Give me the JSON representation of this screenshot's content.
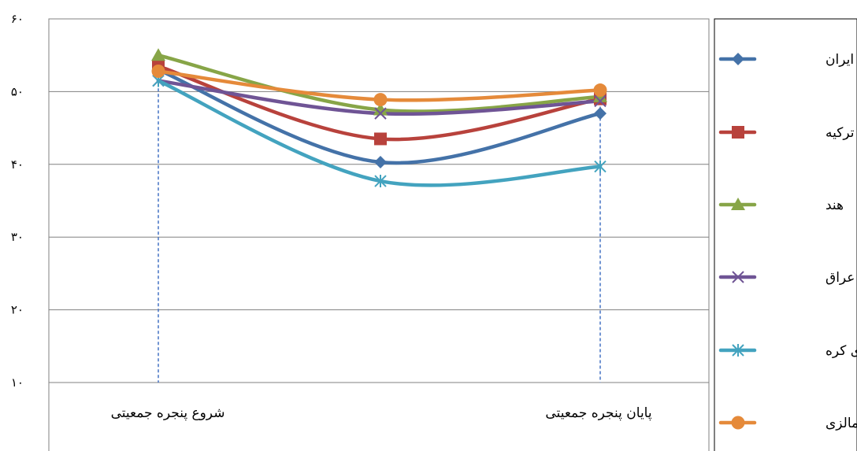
{
  "chart_data": {
    "type": "line",
    "categories": [
      "شروع پنجره جمعیتی",
      "",
      "پایان پنجره جمعیتی"
    ],
    "y_tick_labels": [
      "۱۰",
      "۲۰",
      "۳۰",
      "۴۰",
      "۵۰",
      "۶۰"
    ],
    "ylim": [
      10,
      60
    ],
    "y_ticks": [
      10,
      20,
      30,
      40,
      50,
      60
    ],
    "grid": true,
    "legend_position": "right",
    "series": [
      {
        "name": "ایران",
        "values": [
          53,
          40.3,
          47
        ],
        "color": "#4472a8",
        "marker": "diamond"
      },
      {
        "name": "ترکیه",
        "values": [
          53.5,
          43.5,
          49
        ],
        "color": "#b8423c",
        "marker": "square"
      },
      {
        "name": "هند",
        "values": [
          55,
          47.5,
          49.3
        ],
        "color": "#87a547",
        "marker": "triangle"
      },
      {
        "name": "عراق",
        "values": [
          51.5,
          47,
          48.7
        ],
        "color": "#6f5495",
        "marker": "x"
      },
      {
        "name": "جمهوری کره",
        "values": [
          51.5,
          37.7,
          39.7
        ],
        "color": "#43a3bf",
        "marker": "star"
      },
      {
        "name": "مالزی",
        "values": [
          52.8,
          48.9,
          50.2
        ],
        "color": "#e58a3a",
        "marker": "circle"
      }
    ],
    "drop_lines_at": [
      0,
      2
    ]
  }
}
